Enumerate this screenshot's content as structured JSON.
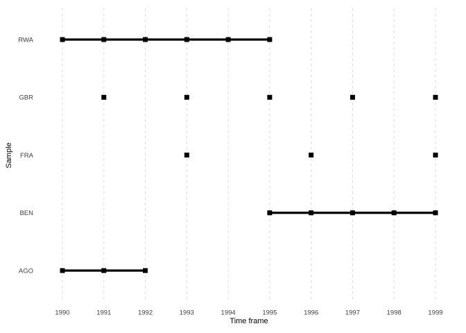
{
  "chart_data": {
    "type": "line",
    "title": "",
    "xlabel": "Time frame",
    "ylabel": "Sample",
    "x_range": [
      1990,
      1999
    ],
    "x_tick_labels": [
      "1990",
      "1991",
      "1992",
      "1993",
      "1994",
      "1995",
      "1996",
      "1997",
      "1998",
      "1999"
    ],
    "categories_top_to_bottom": [
      "RWA",
      "GBR",
      "FRA",
      "BEN",
      "AGO"
    ],
    "series": [
      {
        "name": "RWA",
        "x": [
          1990,
          1991,
          1992,
          1993,
          1994,
          1995
        ]
      },
      {
        "name": "GBR",
        "x": [
          1991,
          1993,
          1995,
          1997,
          1999
        ]
      },
      {
        "name": "FRA",
        "x": [
          1993,
          1996,
          1999
        ]
      },
      {
        "name": "BEN",
        "x": [
          1995,
          1996,
          1997,
          1998,
          1999
        ]
      },
      {
        "name": "AGO",
        "x": [
          1990,
          1991,
          1992
        ]
      }
    ],
    "connect_rule": "consecutive-years",
    "marker": "square",
    "grid": {
      "vertical": true,
      "horizontal": false,
      "style": "dashed"
    },
    "legend": "none",
    "colors": {
      "series": "#000000",
      "grid": "#D9D9D9",
      "tick_text": "#404040",
      "axis_title_text": "#000000",
      "background": "#FFFFFF"
    }
  }
}
